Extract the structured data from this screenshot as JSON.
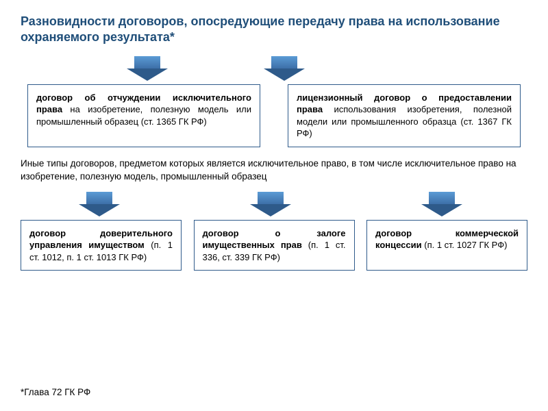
{
  "title": "Разновидности договоров, опосредующие передачу права на использование охраняемого результата*",
  "arrow": {
    "stem_gradient_top": "#5b9bd5",
    "stem_gradient_bottom": "#3d6fa8",
    "head_color": "#2e5a8a"
  },
  "box_border_color": "#2e5a8a",
  "top_boxes": [
    {
      "bold": "договор об отчуждении исключительного права",
      "rest": " на изобретение, полезную модель или промышленный образец (ст. 1365 ГК РФ)"
    },
    {
      "bold": "лицензионный договор о предоставлении права",
      "rest": " использования изобретения, полезной модели или промышленного образца (ст. 1367 ГК РФ)"
    }
  ],
  "mid_text": "Иные типы договоров, предметом которых является исключительное право, в том числе исключительное право на изобретение, полезную модель, промышленный образец",
  "bottom_boxes": [
    {
      "bold": "договор доверительного управления имуществом",
      "rest": " (п. 1 ст. 1012, п. 1 ст. 1013 ГК РФ)"
    },
    {
      "bold": "договор о залоге имущественных прав",
      "rest": " (п. 1 ст. 336, ст. 339 ГК РФ)"
    },
    {
      "bold": "договор коммерческой концессии",
      "rest": " (п. 1 ст. 1027 ГК РФ)"
    }
  ],
  "footnote": "*Глава 72 ГК РФ",
  "title_color": "#1f4e79",
  "title_fontsize": 18,
  "body_fontsize": 13
}
